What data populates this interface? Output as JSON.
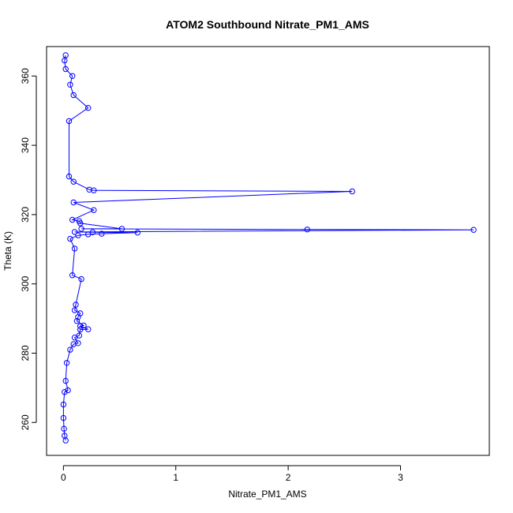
{
  "chart_data": {
    "type": "scatter",
    "title": "ATOM2 Southbound Nitrate_PM1_AMS",
    "xlabel": "Nitrate_PM1_AMS",
    "ylabel": "Theta (K)",
    "xlim": [
      -0.15,
      3.79
    ],
    "ylim": [
      250.5,
      368.5
    ],
    "x_ticks": [
      0,
      1,
      2,
      3
    ],
    "y_ticks": [
      260,
      280,
      300,
      320,
      340,
      360
    ],
    "grid": false,
    "legend": "none",
    "marker": "open-circle",
    "connected": true,
    "color": "#0000ff",
    "series": [
      {
        "values": [
          {
            "x": 0.02,
            "y": 254.8
          },
          {
            "x": 0.01,
            "y": 256.2
          },
          {
            "x": 0.005,
            "y": 258.2
          },
          {
            "x": 0.0,
            "y": 261.3
          },
          {
            "x": 0.0,
            "y": 265.2
          },
          {
            "x": 0.01,
            "y": 268.8
          },
          {
            "x": 0.04,
            "y": 269.3
          },
          {
            "x": 0.02,
            "y": 272.0
          },
          {
            "x": 0.03,
            "y": 277.2
          },
          {
            "x": 0.06,
            "y": 281.0
          },
          {
            "x": 0.09,
            "y": 282.6
          },
          {
            "x": 0.13,
            "y": 282.9
          },
          {
            "x": 0.1,
            "y": 284.5
          },
          {
            "x": 0.14,
            "y": 285.1
          },
          {
            "x": 0.15,
            "y": 286.8
          },
          {
            "x": 0.22,
            "y": 286.9
          },
          {
            "x": 0.15,
            "y": 287.8
          },
          {
            "x": 0.18,
            "y": 288.0
          },
          {
            "x": 0.12,
            "y": 289.3
          },
          {
            "x": 0.13,
            "y": 290.4
          },
          {
            "x": 0.15,
            "y": 291.5
          },
          {
            "x": 0.1,
            "y": 292.4
          },
          {
            "x": 0.11,
            "y": 294.0
          },
          {
            "x": 0.16,
            "y": 301.4
          },
          {
            "x": 0.08,
            "y": 302.5
          },
          {
            "x": 0.1,
            "y": 310.2
          },
          {
            "x": 0.06,
            "y": 313.0
          },
          {
            "x": 0.13,
            "y": 314.0
          },
          {
            "x": 0.22,
            "y": 314.3
          },
          {
            "x": 0.34,
            "y": 314.5
          },
          {
            "x": 0.66,
            "y": 314.8
          },
          {
            "x": 0.26,
            "y": 314.9
          },
          {
            "x": 0.1,
            "y": 315.0
          },
          {
            "x": 3.65,
            "y": 315.6
          },
          {
            "x": 2.17,
            "y": 315.7
          },
          {
            "x": 0.16,
            "y": 315.9
          },
          {
            "x": 0.52,
            "y": 315.9
          },
          {
            "x": 0.15,
            "y": 317.5
          },
          {
            "x": 0.08,
            "y": 318.5
          },
          {
            "x": 0.14,
            "y": 318.1
          },
          {
            "x": 0.27,
            "y": 321.3
          },
          {
            "x": 0.09,
            "y": 323.5
          },
          {
            "x": 2.57,
            "y": 326.7
          },
          {
            "x": 0.27,
            "y": 327.0
          },
          {
            "x": 0.23,
            "y": 327.2
          },
          {
            "x": 0.09,
            "y": 329.5
          },
          {
            "x": 0.05,
            "y": 331.0
          },
          {
            "x": 0.05,
            "y": 347.0
          },
          {
            "x": 0.22,
            "y": 350.8
          },
          {
            "x": 0.09,
            "y": 354.5
          },
          {
            "x": 0.06,
            "y": 357.5
          },
          {
            "x": 0.08,
            "y": 360.0
          },
          {
            "x": 0.02,
            "y": 362.0
          },
          {
            "x": 0.01,
            "y": 364.5
          },
          {
            "x": 0.02,
            "y": 366.0
          }
        ]
      }
    ]
  }
}
